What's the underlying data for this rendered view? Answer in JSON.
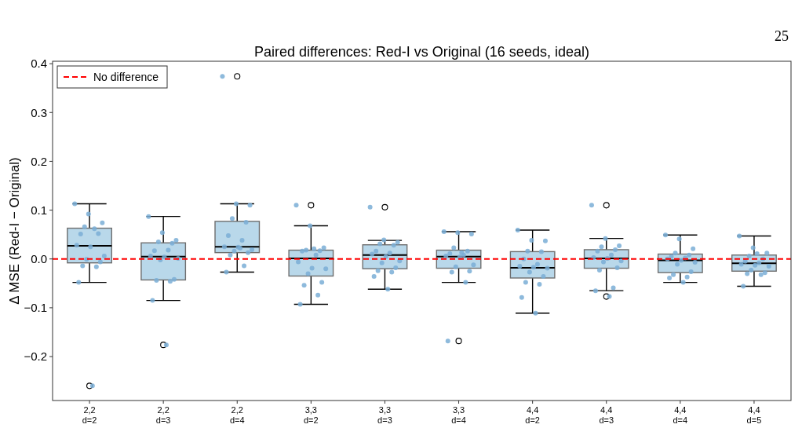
{
  "chart_data": {
    "type": "box",
    "title": "Paired differences: Red-I vs Original (16 seeds, ideal)",
    "ylabel": "Δ MSE (Red-I − Original)",
    "annotations": [
      "25"
    ],
    "categories": [
      "2,2\nd=2",
      "2,2\nd=3",
      "2,2\nd=4",
      "3,3\nd=2",
      "3,3\nd=3",
      "3,3\nd=4",
      "4,4\nd=2",
      "4,4\nd=3",
      "4,4\nd=4",
      "4,4\nd=5"
    ],
    "color": "#b9d8ea",
    "boxes": [
      {
        "low": -0.048,
        "q1": -0.008,
        "median": 0.027,
        "q3": 0.063,
        "high": 0.113,
        "outliers": [
          -0.26
        ]
      },
      {
        "low": -0.085,
        "q1": -0.043,
        "median": 0.005,
        "q3": 0.033,
        "high": 0.087,
        "outliers": [
          -0.176
        ]
      },
      {
        "low": -0.027,
        "q1": 0.013,
        "median": 0.025,
        "q3": 0.077,
        "high": 0.113,
        "outliers": [
          0.374
        ]
      },
      {
        "low": -0.093,
        "q1": -0.035,
        "median": 0.001,
        "q3": 0.018,
        "high": 0.068,
        "outliers": [
          0.11
        ]
      },
      {
        "low": -0.062,
        "q1": -0.02,
        "median": 0.008,
        "q3": 0.029,
        "high": 0.038,
        "outliers": [
          0.106
        ]
      },
      {
        "low": -0.048,
        "q1": -0.019,
        "median": 0.005,
        "q3": 0.018,
        "high": 0.056,
        "outliers": [
          -0.168
        ]
      },
      {
        "low": -0.111,
        "q1": -0.039,
        "median": -0.018,
        "q3": 0.015,
        "high": 0.059
      },
      {
        "low": -0.065,
        "q1": -0.019,
        "median": 0.001,
        "q3": 0.019,
        "high": 0.042,
        "outliers": [
          0.11,
          -0.077
        ]
      },
      {
        "low": -0.048,
        "q1": -0.028,
        "median": -0.003,
        "q3": 0.01,
        "high": 0.049
      },
      {
        "low": -0.056,
        "q1": -0.025,
        "median": -0.009,
        "q3": 0.008,
        "high": 0.047
      }
    ],
    "series": [
      {
        "type": "scatter",
        "color": "#7aaed6",
        "x": [
          "2,2\nd=2",
          "2,2\nd=2",
          "2,2\nd=2",
          "2,2\nd=2",
          "2,2\nd=2",
          "2,2\nd=2",
          "2,2\nd=2",
          "2,2\nd=2",
          "2,2\nd=2",
          "2,2\nd=2",
          "2,2\nd=2",
          "2,2\nd=2",
          "2,2\nd=2",
          "2,2\nd=2",
          "2,2\nd=2",
          "2,2\nd=2",
          "2,2\nd=3",
          "2,2\nd=3",
          "2,2\nd=3",
          "2,2\nd=3",
          "2,2\nd=3",
          "2,2\nd=3",
          "2,2\nd=3",
          "2,2\nd=3",
          "2,2\nd=3",
          "2,2\nd=3",
          "2,2\nd=3",
          "2,2\nd=3",
          "2,2\nd=3",
          "2,2\nd=3",
          "2,2\nd=3",
          "2,2\nd=3",
          "2,2\nd=4",
          "2,2\nd=4",
          "2,2\nd=4",
          "2,2\nd=4",
          "2,2\nd=4",
          "2,2\nd=4",
          "2,2\nd=4",
          "2,2\nd=4",
          "2,2\nd=4",
          "2,2\nd=4",
          "2,2\nd=4",
          "2,2\nd=4",
          "2,2\nd=4",
          "2,2\nd=4",
          "2,2\nd=4",
          "2,2\nd=4",
          "3,3\nd=2",
          "3,3\nd=2",
          "3,3\nd=2",
          "3,3\nd=2",
          "3,3\nd=2",
          "3,3\nd=2",
          "3,3\nd=2",
          "3,3\nd=2",
          "3,3\nd=2",
          "3,3\nd=2",
          "3,3\nd=2",
          "3,3\nd=2",
          "3,3\nd=2",
          "3,3\nd=2",
          "3,3\nd=2",
          "3,3\nd=2",
          "3,3\nd=3",
          "3,3\nd=3",
          "3,3\nd=3",
          "3,3\nd=3",
          "3,3\nd=3",
          "3,3\nd=3",
          "3,3\nd=3",
          "3,3\nd=3",
          "3,3\nd=3",
          "3,3\nd=3",
          "3,3\nd=3",
          "3,3\nd=3",
          "3,3\nd=3",
          "3,3\nd=3",
          "3,3\nd=3",
          "3,3\nd=3",
          "3,3\nd=4",
          "3,3\nd=4",
          "3,3\nd=4",
          "3,3\nd=4",
          "3,3\nd=4",
          "3,3\nd=4",
          "3,3\nd=4",
          "3,3\nd=4",
          "3,3\nd=4",
          "3,3\nd=4",
          "3,3\nd=4",
          "3,3\nd=4",
          "3,3\nd=4",
          "3,3\nd=4",
          "3,3\nd=4",
          "3,3\nd=4",
          "4,4\nd=2",
          "4,4\nd=2",
          "4,4\nd=2",
          "4,4\nd=2",
          "4,4\nd=2",
          "4,4\nd=2",
          "4,4\nd=2",
          "4,4\nd=2",
          "4,4\nd=2",
          "4,4\nd=2",
          "4,4\nd=2",
          "4,4\nd=2",
          "4,4\nd=2",
          "4,4\nd=2",
          "4,4\nd=2",
          "4,4\nd=2",
          "4,4\nd=3",
          "4,4\nd=3",
          "4,4\nd=3",
          "4,4\nd=3",
          "4,4\nd=3",
          "4,4\nd=3",
          "4,4\nd=3",
          "4,4\nd=3",
          "4,4\nd=3",
          "4,4\nd=3",
          "4,4\nd=3",
          "4,4\nd=3",
          "4,4\nd=3",
          "4,4\nd=3",
          "4,4\nd=3",
          "4,4\nd=3",
          "4,4\nd=4",
          "4,4\nd=4",
          "4,4\nd=4",
          "4,4\nd=4",
          "4,4\nd=4",
          "4,4\nd=4",
          "4,4\nd=4",
          "4,4\nd=4",
          "4,4\nd=4",
          "4,4\nd=4",
          "4,4\nd=4",
          "4,4\nd=4",
          "4,4\nd=4",
          "4,4\nd=4",
          "4,4\nd=4",
          "4,4\nd=4",
          "4,4\nd=5",
          "4,4\nd=5",
          "4,4\nd=5",
          "4,4\nd=5",
          "4,4\nd=5",
          "4,4\nd=5",
          "4,4\nd=5",
          "4,4\nd=5",
          "4,4\nd=5",
          "4,4\nd=5",
          "4,4\nd=5",
          "4,4\nd=5",
          "4,4\nd=5",
          "4,4\nd=5",
          "4,4\nd=5",
          "4,4\nd=5"
        ],
        "values": [
          0.113,
          0.092,
          0.074,
          0.066,
          0.052,
          0.051,
          0.062,
          0.028,
          0.025,
          0.006,
          -0.001,
          -0.006,
          -0.014,
          -0.016,
          -0.048,
          -0.26,
          0.087,
          0.054,
          0.038,
          0.035,
          0.032,
          0.017,
          0.018,
          0.006,
          0.004,
          0.001,
          -0.002,
          -0.042,
          -0.044,
          -0.046,
          -0.085,
          -0.176,
          0.374,
          0.113,
          0.11,
          0.083,
          0.075,
          0.048,
          0.038,
          0.025,
          0.024,
          0.019,
          0.016,
          0.013,
          0.008,
          -0.014,
          -0.027,
          0.022,
          0.11,
          0.068,
          0.023,
          0.018,
          0.017,
          0.016,
          0.008,
          -0.006,
          -0.019,
          -0.02,
          -0.03,
          -0.048,
          -0.054,
          -0.074,
          -0.093,
          0.021,
          0.106,
          0.039,
          0.034,
          0.031,
          0.028,
          0.016,
          0.012,
          0.01,
          0.005,
          -0.004,
          -0.008,
          -0.018,
          -0.024,
          -0.027,
          -0.036,
          -0.062,
          0.056,
          0.054,
          0.051,
          0.023,
          0.016,
          0.011,
          0.008,
          0.006,
          0.004,
          -0.012,
          -0.016,
          -0.025,
          -0.027,
          -0.048,
          -0.168,
          0.013,
          0.059,
          0.038,
          0.037,
          0.016,
          0.015,
          0.0,
          -0.011,
          -0.015,
          -0.017,
          -0.019,
          -0.027,
          -0.036,
          -0.048,
          -0.052,
          -0.079,
          -0.111,
          0.11,
          0.042,
          0.027,
          0.025,
          0.019,
          0.016,
          0.008,
          0.003,
          0.001,
          -0.004,
          -0.006,
          -0.018,
          -0.023,
          -0.059,
          -0.065,
          -0.077,
          0.049,
          0.041,
          0.021,
          0.012,
          0.008,
          0.005,
          0.002,
          0.0,
          -0.003,
          -0.007,
          -0.011,
          -0.026,
          -0.032,
          -0.037,
          -0.039,
          -0.048,
          0.047,
          0.023,
          0.012,
          0.006,
          0.0,
          -0.005,
          -0.008,
          -0.011,
          -0.013,
          -0.015,
          -0.023,
          -0.028,
          -0.03,
          -0.032,
          -0.056,
          0.011
        ]
      }
    ],
    "ylim": [
      -0.29,
      0.405
    ],
    "yticks": [
      {
        "value": -0.2,
        "label": "−0.2"
      },
      {
        "value": -0.1,
        "label": "−0.1"
      },
      {
        "value": 0,
        "label": "0.0"
      },
      0.1,
      0.2,
      0.3,
      0.4
    ],
    "ref_lines": [
      {
        "axis": "y",
        "value": 0,
        "label": "No difference",
        "color": "#ff0000",
        "line_style": "dashed"
      }
    ],
    "legend": "top left",
    "grid": false
  }
}
